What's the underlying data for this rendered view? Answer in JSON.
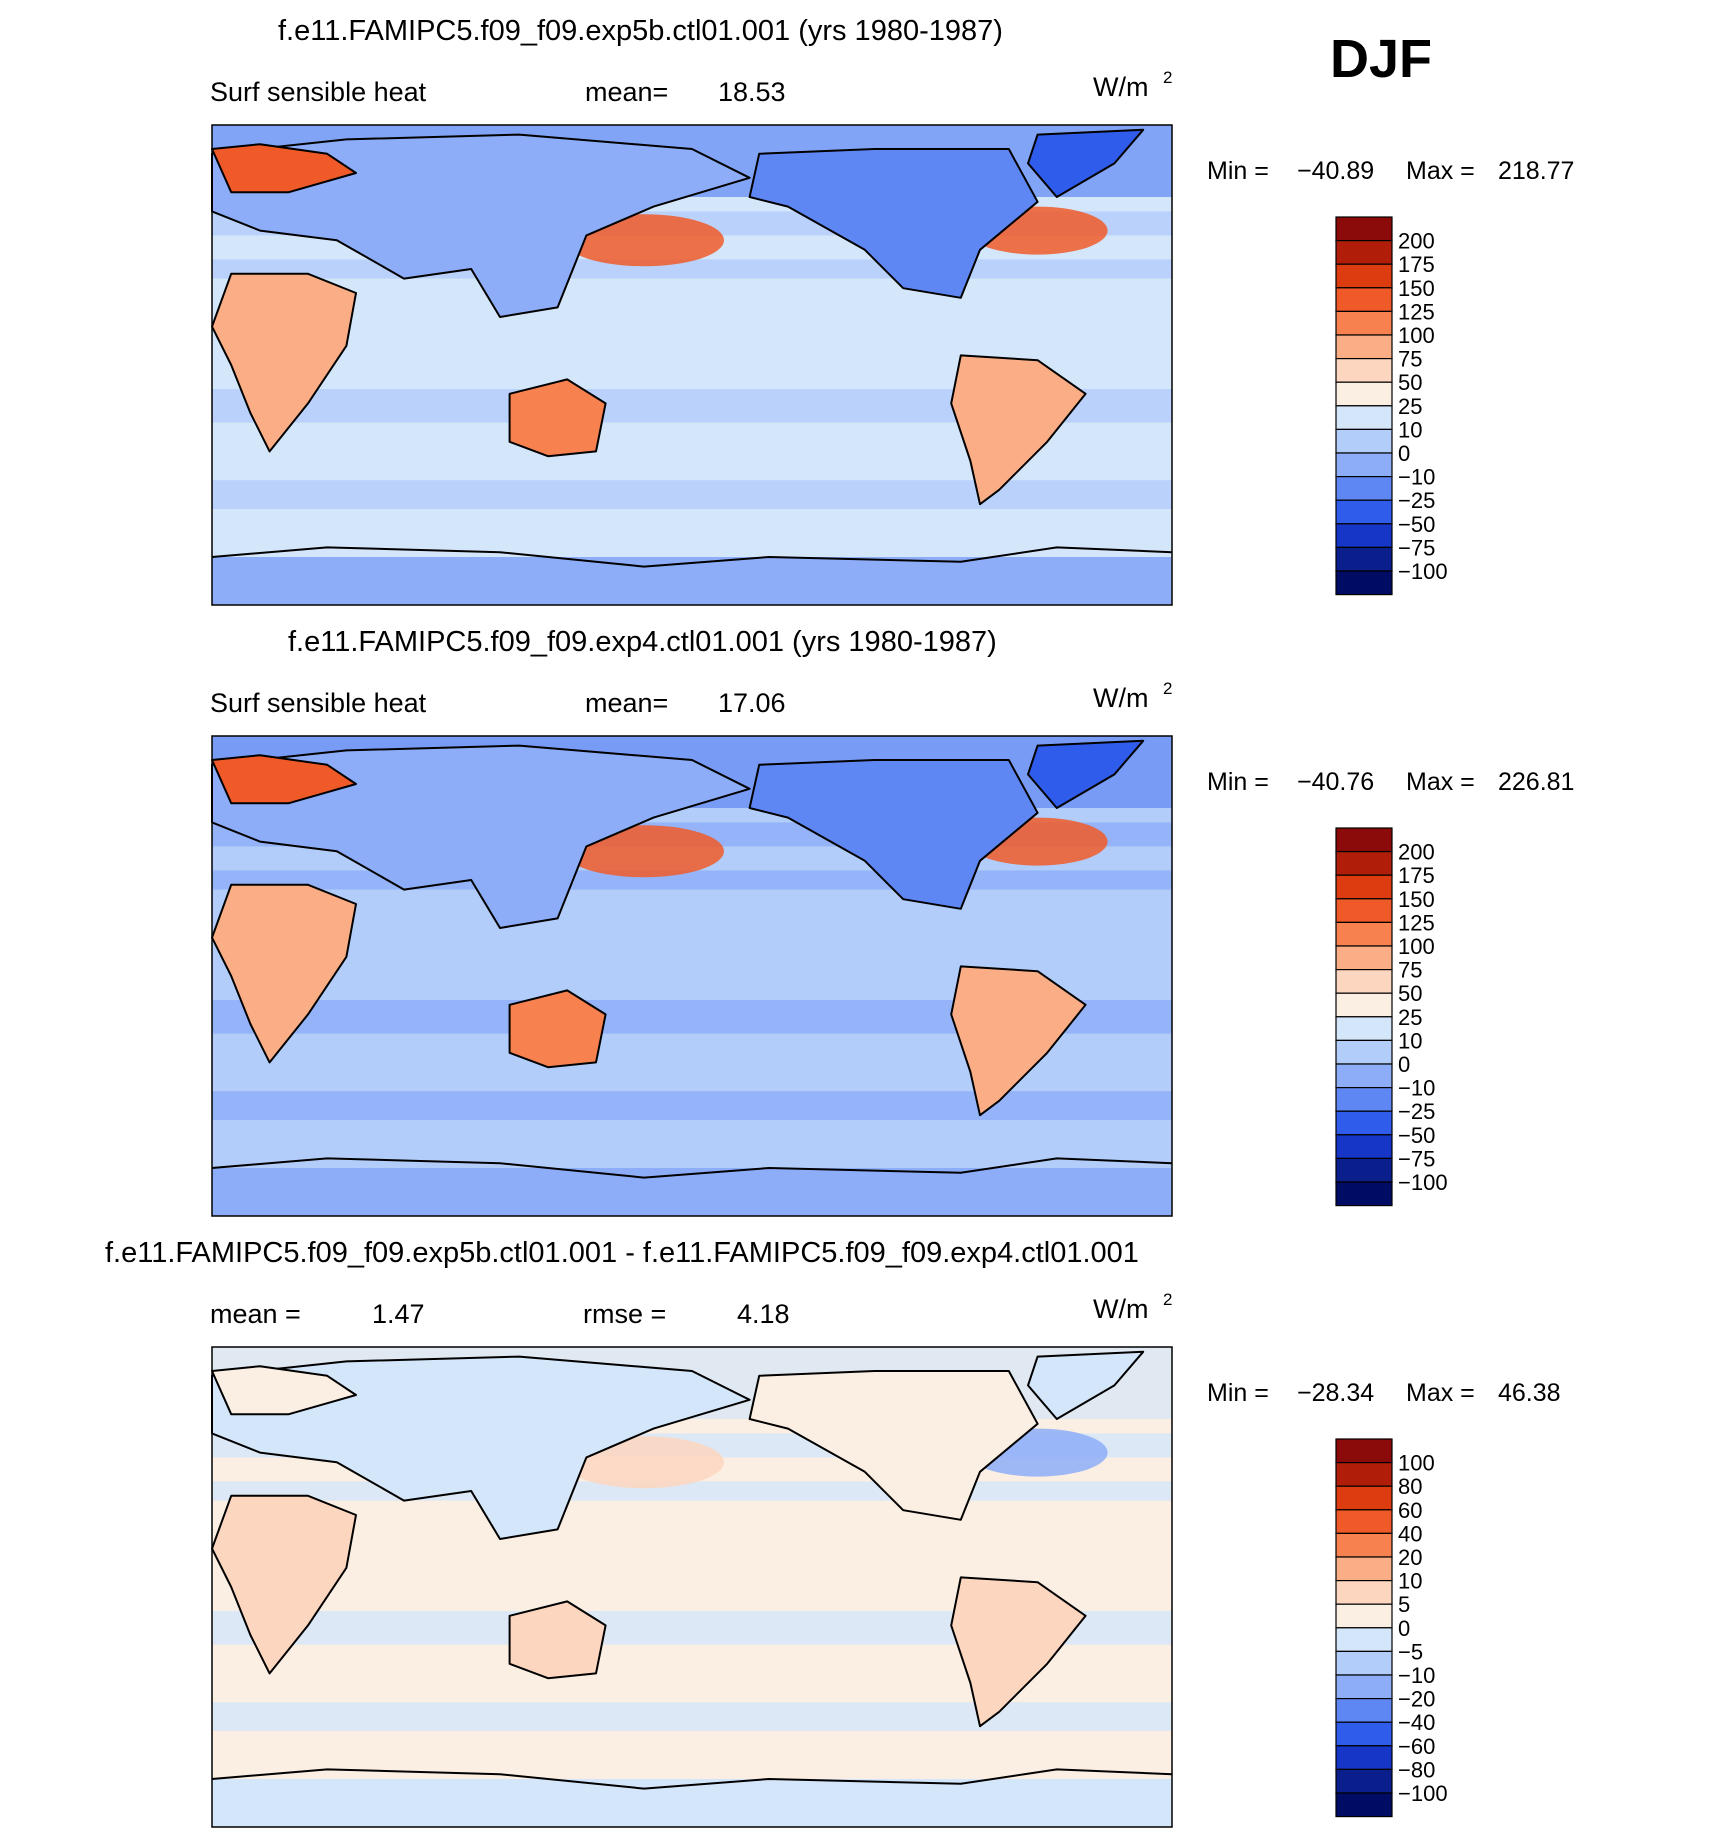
{
  "season": "DJF",
  "chart_data": [
    {
      "type": "heatmap",
      "title": "f.e11.FAMIPC5.f09_f09.exp5b.ctl01.001 (yrs 1980-1987)",
      "variable": "Surf  sensible  heat",
      "stat1_label": "mean=",
      "stat1_value": "18.53",
      "stat2_label": "",
      "stat2_value": "",
      "units": "W/m",
      "units_sup": "2",
      "min_label": "Min  =",
      "min_value": "−40.89",
      "max_label": "Max  =",
      "max_value": "218.77",
      "legend": [
        "200",
        "175",
        "150",
        "125",
        "100",
        "75",
        "50",
        "25",
        "10",
        "0",
        "−10",
        "−25",
        "−50",
        "−75",
        "−100"
      ],
      "colors": [
        "#8b0a0a",
        "#b01e0a",
        "#dc3c10",
        "#f05a28",
        "#f7824f",
        "#fbae86",
        "#fdd6c0",
        "#fbeee2",
        "#d4e6fa",
        "#b3cdfb",
        "#8dadf8",
        "#5f87f4",
        "#2f5cea",
        "#1636c8",
        "#0a1e8c",
        "#000c64"
      ],
      "map": {
        "ocean_level": 8,
        "antarctic_level": 10,
        "greenland_level": 12,
        "arctic_level": 11,
        "africa_level": 5,
        "australia_level": 4,
        "southamerica_level": 5,
        "northamerica_level": 11,
        "eurasia_level": 10,
        "kuroshio_level": 3,
        "gulfstream_level": 3,
        "europe_level": 3,
        "band_level": 9
      }
    },
    {
      "type": "heatmap",
      "title": "f.e11.FAMIPC5.f09_f09.exp4.ctl01.001 (yrs 1980-1987)",
      "variable": "Surf  sensible  heat",
      "stat1_label": "mean=",
      "stat1_value": "17.06",
      "stat2_label": "",
      "stat2_value": "",
      "units": "W/m",
      "units_sup": "2",
      "min_label": "Min  =",
      "min_value": "−40.76",
      "max_label": "Max  =",
      "max_value": "226.81",
      "legend": [
        "200",
        "175",
        "150",
        "125",
        "100",
        "75",
        "50",
        "25",
        "10",
        "0",
        "−10",
        "−25",
        "−50",
        "−75",
        "−100"
      ],
      "colors": [
        "#8b0a0a",
        "#b01e0a",
        "#dc3c10",
        "#f05a28",
        "#f7824f",
        "#fbae86",
        "#fdd6c0",
        "#fbeee2",
        "#d4e6fa",
        "#b3cdfb",
        "#8dadf8",
        "#5f87f4",
        "#2f5cea",
        "#1636c8",
        "#0a1e8c",
        "#000c64"
      ],
      "map": {
        "ocean_level": 9,
        "antarctic_level": 10,
        "greenland_level": 12,
        "arctic_level": 11,
        "africa_level": 5,
        "australia_level": 4,
        "southamerica_level": 5,
        "northamerica_level": 11,
        "eurasia_level": 10,
        "kuroshio_level": 3,
        "gulfstream_level": 3,
        "europe_level": 3,
        "band_level": 10
      }
    },
    {
      "type": "heatmap",
      "title": "f.e11.FAMIPC5.f09_f09.exp5b.ctl01.001 - f.e11.FAMIPC5.f09_f09.exp4.ctl01.001",
      "variable": "",
      "stat1_label": "mean  =",
      "stat1_value": "1.47",
      "stat2_label": "rmse  =",
      "stat2_value": "4.18",
      "units": "W/m",
      "units_sup": "2",
      "min_label": "Min  =",
      "min_value": "−28.34",
      "max_label": "Max  =",
      "max_value": "46.38",
      "legend": [
        "100",
        "80",
        "60",
        "40",
        "20",
        "10",
        "5",
        "0",
        "−5",
        "−10",
        "−20",
        "−40",
        "−60",
        "−80",
        "−100"
      ],
      "colors": [
        "#8b0a0a",
        "#b01e0a",
        "#dc3c10",
        "#f05a28",
        "#f7824f",
        "#fbae86",
        "#fdd6c0",
        "#fbeee2",
        "#d4e6fa",
        "#b3cdfb",
        "#8dadf8",
        "#5f87f4",
        "#2f5cea",
        "#1636c8",
        "#0a1e8c",
        "#000c64"
      ],
      "map": {
        "ocean_level": 7,
        "antarctic_level": 8,
        "greenland_level": 8,
        "arctic_level": 8,
        "africa_level": 6,
        "australia_level": 6,
        "southamerica_level": 6,
        "northamerica_level": 7,
        "eurasia_level": 8,
        "kuroshio_level": 6,
        "gulfstream_level": 10,
        "europe_level": 7,
        "band_level": 8
      }
    }
  ]
}
